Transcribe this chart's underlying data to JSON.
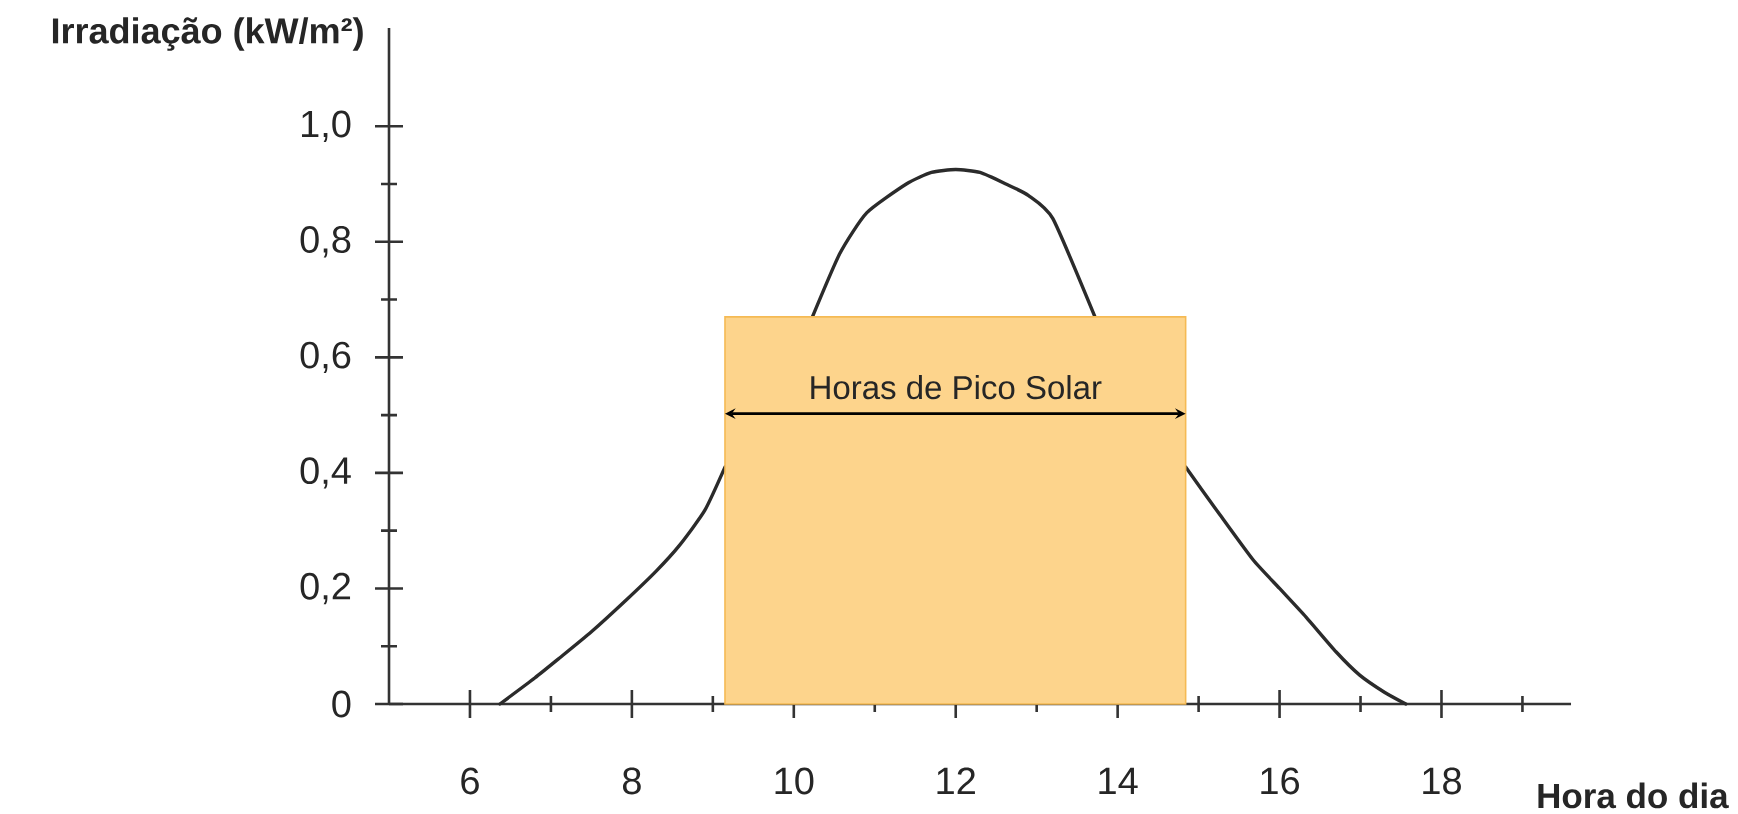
{
  "chart_data": {
    "type": "line",
    "xlabel": "Hora do dia",
    "ylabel": "Irradiação (kW/m²)",
    "xlim": [
      5,
      19.6
    ],
    "ylim": [
      0,
      1.17
    ],
    "xticks": [
      6,
      {
        "value": 7,
        "label": null
      },
      8,
      {
        "value": 9,
        "label": null
      },
      10,
      {
        "value": 11,
        "label": null
      },
      12,
      {
        "value": 13,
        "label": null
      },
      14,
      {
        "value": 15,
        "label": null
      },
      16,
      {
        "value": 17,
        "label": null
      },
      18,
      {
        "value": 19,
        "label": null
      }
    ],
    "yticks": [
      0,
      {
        "value": 0.1,
        "label": null
      },
      {
        "value": 0.2,
        "label": "0,2"
      },
      {
        "value": 0.3,
        "label": null
      },
      {
        "value": 0.4,
        "label": "0,4"
      },
      {
        "value": 0.5,
        "label": null
      },
      {
        "value": 0.6,
        "label": "0,6"
      },
      {
        "value": 0.7,
        "label": null
      },
      {
        "value": 0.8,
        "label": "0,8"
      },
      {
        "value": 0.9,
        "label": null
      },
      {
        "value": 1.0,
        "label": "1,0"
      }
    ],
    "series": [
      {
        "color": "#2b2b2b",
        "x": [
          6.37,
          6.8,
          7.11,
          7.5,
          7.93,
          8.3,
          8.59,
          8.9,
          9.15,
          9.7,
          10.23,
          10.57,
          10.9,
          11.39,
          11.7,
          12.0,
          12.3,
          12.62,
          12.9,
          13.2,
          13.72,
          14.3,
          14.84,
          15.25,
          15.67,
          16.0,
          16.33,
          16.7,
          16.99,
          17.3,
          17.56
        ],
        "values": [
          0,
          0.045,
          0.08,
          0.125,
          0.18,
          0.23,
          0.275,
          0.335,
          0.41,
          null,
          0.67,
          0.78,
          0.85,
          0.9,
          0.92,
          0.925,
          0.92,
          0.9,
          0.88,
          0.84,
          0.67,
          null,
          0.41,
          0.33,
          0.25,
          0.2,
          0.15,
          0.09,
          0.05,
          0.02,
          0
        ]
      },
      {
        "type": "area",
        "color": "#fdd48c",
        "x": [
          9.15,
          14.84
        ],
        "values": [
          0.67,
          0.67
        ]
      }
    ],
    "annotations": [
      "Horas de Pico Solar"
    ]
  }
}
